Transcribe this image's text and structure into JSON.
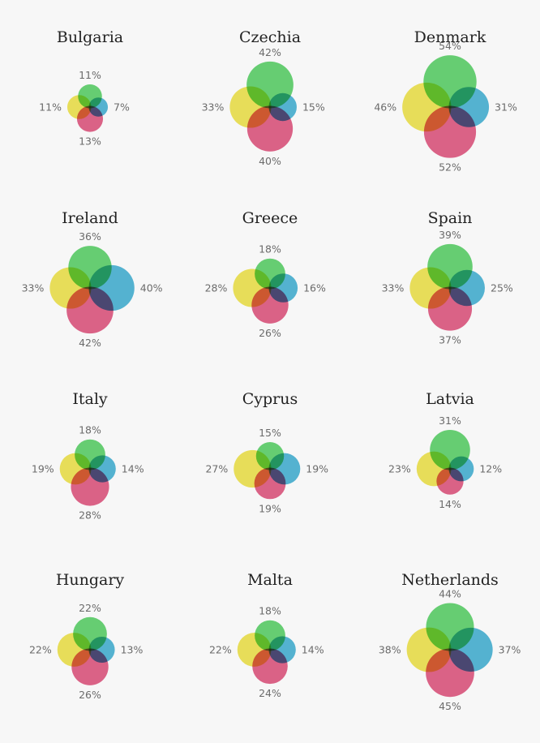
{
  "chart_data": {
    "type": "venn-grid",
    "series": [
      {
        "name": "top",
        "color": "#4fcc5e"
      },
      {
        "name": "right",
        "color": "#3aacd0"
      },
      {
        "name": "bottom",
        "color": "#dc4a76"
      },
      {
        "name": "left",
        "color": "#ece040"
      }
    ],
    "panels": [
      {
        "country": "Bulgaria",
        "top": 11,
        "right": 7,
        "bottom": 13,
        "left": 11,
        "top_label": "11%",
        "right_label": "7%",
        "bottom_label": "13%",
        "left_label": "11%"
      },
      {
        "country": "Czechia",
        "top": 42,
        "right": 15,
        "bottom": 40,
        "left": 33,
        "top_label": "42%",
        "right_label": "15%",
        "bottom_label": "40%",
        "left_label": "33%"
      },
      {
        "country": "Denmark",
        "top": 54,
        "right": 31,
        "bottom": 52,
        "left": 46,
        "top_label": "54%",
        "right_label": "31%",
        "bottom_label": "52%",
        "left_label": "46%"
      },
      {
        "country": "Ireland",
        "top": 36,
        "right": 40,
        "bottom": 42,
        "left": 33,
        "top_label": "36%",
        "right_label": "40%",
        "bottom_label": "42%",
        "left_label": "33%"
      },
      {
        "country": "Greece",
        "top": 18,
        "right": 16,
        "bottom": 26,
        "left": 28,
        "top_label": "18%",
        "right_label": "16%",
        "bottom_label": "26%",
        "left_label": "28%"
      },
      {
        "country": "Spain",
        "top": 39,
        "right": 25,
        "bottom": 37,
        "left": 33,
        "top_label": "39%",
        "right_label": "25%",
        "bottom_label": "37%",
        "left_label": "33%"
      },
      {
        "country": "Italy",
        "top": 18,
        "right": 14,
        "bottom": 28,
        "left": 19,
        "top_label": "18%",
        "right_label": "14%",
        "bottom_label": "28%",
        "left_label": "19%"
      },
      {
        "country": "Cyprus",
        "top": 15,
        "right": 19,
        "bottom": 19,
        "left": 27,
        "top_label": "15%",
        "right_label": "19%",
        "bottom_label": "19%",
        "left_label": "27%"
      },
      {
        "country": "Latvia",
        "top": 31,
        "right": 12,
        "bottom": 14,
        "left": 23,
        "top_label": "31%",
        "right_label": "12%",
        "bottom_label": "14%",
        "left_label": "23%"
      },
      {
        "country": "Hungary",
        "top": 22,
        "right": 13,
        "bottom": 26,
        "left": 22,
        "top_label": "22%",
        "right_label": "13%",
        "bottom_label": "26%",
        "left_label": "22%"
      },
      {
        "country": "Malta",
        "top": 18,
        "right": 14,
        "bottom": 24,
        "left": 22,
        "top_label": "18%",
        "right_label": "14%",
        "bottom_label": "24%",
        "left_label": "22%"
      },
      {
        "country": "Netherlands",
        "top": 44,
        "right": 37,
        "bottom": 45,
        "left": 38,
        "top_label": "44%",
        "right_label": "37%",
        "bottom_label": "45%",
        "left_label": "38%"
      }
    ]
  }
}
